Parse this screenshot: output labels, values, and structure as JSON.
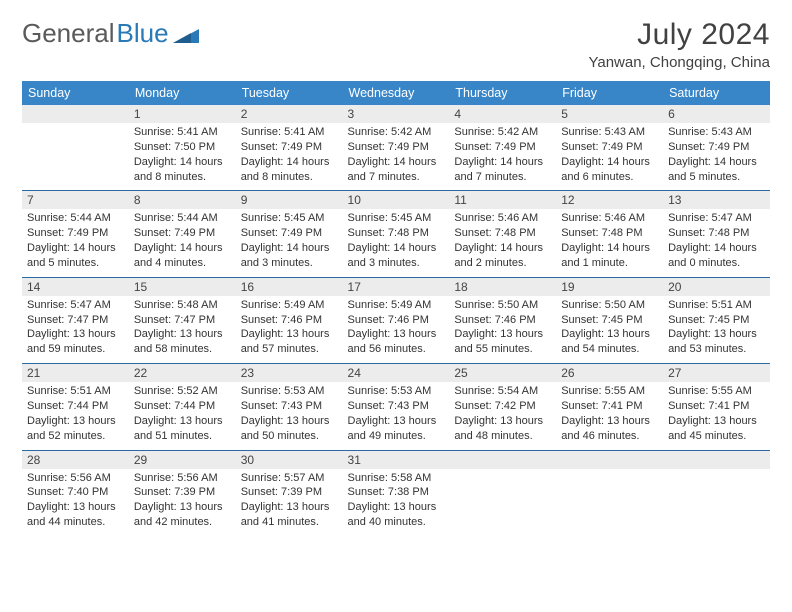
{
  "brand": {
    "part1": "General",
    "part2": "Blue"
  },
  "title": "July 2024",
  "location": "Yanwan, Chongqing, China",
  "colors": {
    "header_bg": "#3886c8",
    "header_text": "#ffffff",
    "daynum_bg": "#ececec",
    "rule": "#2a6aa0",
    "text": "#333333",
    "logo_gray": "#5a5a5a",
    "logo_blue": "#2a7ab8"
  },
  "weekdays": [
    "Sunday",
    "Monday",
    "Tuesday",
    "Wednesday",
    "Thursday",
    "Friday",
    "Saturday"
  ],
  "weeks": [
    [
      {
        "day": "",
        "sunrise": "",
        "sunset": "",
        "daylight": ""
      },
      {
        "day": "1",
        "sunrise": "Sunrise: 5:41 AM",
        "sunset": "Sunset: 7:50 PM",
        "daylight": "Daylight: 14 hours and 8 minutes."
      },
      {
        "day": "2",
        "sunrise": "Sunrise: 5:41 AM",
        "sunset": "Sunset: 7:49 PM",
        "daylight": "Daylight: 14 hours and 8 minutes."
      },
      {
        "day": "3",
        "sunrise": "Sunrise: 5:42 AM",
        "sunset": "Sunset: 7:49 PM",
        "daylight": "Daylight: 14 hours and 7 minutes."
      },
      {
        "day": "4",
        "sunrise": "Sunrise: 5:42 AM",
        "sunset": "Sunset: 7:49 PM",
        "daylight": "Daylight: 14 hours and 7 minutes."
      },
      {
        "day": "5",
        "sunrise": "Sunrise: 5:43 AM",
        "sunset": "Sunset: 7:49 PM",
        "daylight": "Daylight: 14 hours and 6 minutes."
      },
      {
        "day": "6",
        "sunrise": "Sunrise: 5:43 AM",
        "sunset": "Sunset: 7:49 PM",
        "daylight": "Daylight: 14 hours and 5 minutes."
      }
    ],
    [
      {
        "day": "7",
        "sunrise": "Sunrise: 5:44 AM",
        "sunset": "Sunset: 7:49 PM",
        "daylight": "Daylight: 14 hours and 5 minutes."
      },
      {
        "day": "8",
        "sunrise": "Sunrise: 5:44 AM",
        "sunset": "Sunset: 7:49 PM",
        "daylight": "Daylight: 14 hours and 4 minutes."
      },
      {
        "day": "9",
        "sunrise": "Sunrise: 5:45 AM",
        "sunset": "Sunset: 7:49 PM",
        "daylight": "Daylight: 14 hours and 3 minutes."
      },
      {
        "day": "10",
        "sunrise": "Sunrise: 5:45 AM",
        "sunset": "Sunset: 7:48 PM",
        "daylight": "Daylight: 14 hours and 3 minutes."
      },
      {
        "day": "11",
        "sunrise": "Sunrise: 5:46 AM",
        "sunset": "Sunset: 7:48 PM",
        "daylight": "Daylight: 14 hours and 2 minutes."
      },
      {
        "day": "12",
        "sunrise": "Sunrise: 5:46 AM",
        "sunset": "Sunset: 7:48 PM",
        "daylight": "Daylight: 14 hours and 1 minute."
      },
      {
        "day": "13",
        "sunrise": "Sunrise: 5:47 AM",
        "sunset": "Sunset: 7:48 PM",
        "daylight": "Daylight: 14 hours and 0 minutes."
      }
    ],
    [
      {
        "day": "14",
        "sunrise": "Sunrise: 5:47 AM",
        "sunset": "Sunset: 7:47 PM",
        "daylight": "Daylight: 13 hours and 59 minutes."
      },
      {
        "day": "15",
        "sunrise": "Sunrise: 5:48 AM",
        "sunset": "Sunset: 7:47 PM",
        "daylight": "Daylight: 13 hours and 58 minutes."
      },
      {
        "day": "16",
        "sunrise": "Sunrise: 5:49 AM",
        "sunset": "Sunset: 7:46 PM",
        "daylight": "Daylight: 13 hours and 57 minutes."
      },
      {
        "day": "17",
        "sunrise": "Sunrise: 5:49 AM",
        "sunset": "Sunset: 7:46 PM",
        "daylight": "Daylight: 13 hours and 56 minutes."
      },
      {
        "day": "18",
        "sunrise": "Sunrise: 5:50 AM",
        "sunset": "Sunset: 7:46 PM",
        "daylight": "Daylight: 13 hours and 55 minutes."
      },
      {
        "day": "19",
        "sunrise": "Sunrise: 5:50 AM",
        "sunset": "Sunset: 7:45 PM",
        "daylight": "Daylight: 13 hours and 54 minutes."
      },
      {
        "day": "20",
        "sunrise": "Sunrise: 5:51 AM",
        "sunset": "Sunset: 7:45 PM",
        "daylight": "Daylight: 13 hours and 53 minutes."
      }
    ],
    [
      {
        "day": "21",
        "sunrise": "Sunrise: 5:51 AM",
        "sunset": "Sunset: 7:44 PM",
        "daylight": "Daylight: 13 hours and 52 minutes."
      },
      {
        "day": "22",
        "sunrise": "Sunrise: 5:52 AM",
        "sunset": "Sunset: 7:44 PM",
        "daylight": "Daylight: 13 hours and 51 minutes."
      },
      {
        "day": "23",
        "sunrise": "Sunrise: 5:53 AM",
        "sunset": "Sunset: 7:43 PM",
        "daylight": "Daylight: 13 hours and 50 minutes."
      },
      {
        "day": "24",
        "sunrise": "Sunrise: 5:53 AM",
        "sunset": "Sunset: 7:43 PM",
        "daylight": "Daylight: 13 hours and 49 minutes."
      },
      {
        "day": "25",
        "sunrise": "Sunrise: 5:54 AM",
        "sunset": "Sunset: 7:42 PM",
        "daylight": "Daylight: 13 hours and 48 minutes."
      },
      {
        "day": "26",
        "sunrise": "Sunrise: 5:55 AM",
        "sunset": "Sunset: 7:41 PM",
        "daylight": "Daylight: 13 hours and 46 minutes."
      },
      {
        "day": "27",
        "sunrise": "Sunrise: 5:55 AM",
        "sunset": "Sunset: 7:41 PM",
        "daylight": "Daylight: 13 hours and 45 minutes."
      }
    ],
    [
      {
        "day": "28",
        "sunrise": "Sunrise: 5:56 AM",
        "sunset": "Sunset: 7:40 PM",
        "daylight": "Daylight: 13 hours and 44 minutes."
      },
      {
        "day": "29",
        "sunrise": "Sunrise: 5:56 AM",
        "sunset": "Sunset: 7:39 PM",
        "daylight": "Daylight: 13 hours and 42 minutes."
      },
      {
        "day": "30",
        "sunrise": "Sunrise: 5:57 AM",
        "sunset": "Sunset: 7:39 PM",
        "daylight": "Daylight: 13 hours and 41 minutes."
      },
      {
        "day": "31",
        "sunrise": "Sunrise: 5:58 AM",
        "sunset": "Sunset: 7:38 PM",
        "daylight": "Daylight: 13 hours and 40 minutes."
      },
      {
        "day": "",
        "sunrise": "",
        "sunset": "",
        "daylight": ""
      },
      {
        "day": "",
        "sunrise": "",
        "sunset": "",
        "daylight": ""
      },
      {
        "day": "",
        "sunrise": "",
        "sunset": "",
        "daylight": ""
      }
    ]
  ]
}
